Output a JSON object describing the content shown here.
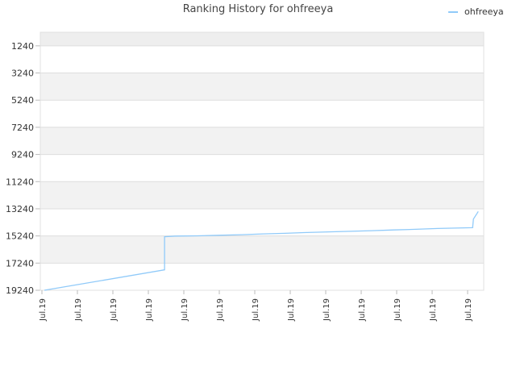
{
  "chart_data": {
    "type": "line",
    "title": "Ranking History for ohfreeya",
    "xlabel": "",
    "ylabel": "",
    "y_inverted": true,
    "ylim": [
      19240,
      240
    ],
    "y_ticks": [
      1240,
      3240,
      5240,
      7240,
      9240,
      11240,
      13240,
      15240,
      17240,
      19240
    ],
    "x_tick_labels": [
      "Jul.19",
      "Jul.19",
      "Jul.19",
      "Jul.19",
      "Jul.19",
      "Jul.19",
      "Jul.19",
      "Jul.19",
      "Jul.19",
      "Jul.19",
      "Jul.19",
      "Jul.19",
      "Jul.19"
    ],
    "legend": {
      "position": "top-right"
    },
    "grid": true,
    "series": [
      {
        "name": "ohfreeya",
        "color": "#90caf9",
        "points": [
          {
            "t": 0.0,
            "rank": 19240
          },
          {
            "t": 0.275,
            "rank": 17740
          },
          {
            "t": 0.275,
            "rank": 15300
          },
          {
            "t": 0.3,
            "rank": 15250
          },
          {
            "t": 0.35,
            "rank": 15230
          },
          {
            "t": 0.4,
            "rank": 15190
          },
          {
            "t": 0.45,
            "rank": 15150
          },
          {
            "t": 0.5,
            "rank": 15090
          },
          {
            "t": 0.55,
            "rank": 15050
          },
          {
            "t": 0.6,
            "rank": 14990
          },
          {
            "t": 0.65,
            "rank": 14940
          },
          {
            "t": 0.7,
            "rank": 14900
          },
          {
            "t": 0.75,
            "rank": 14850
          },
          {
            "t": 0.8,
            "rank": 14800
          },
          {
            "t": 0.85,
            "rank": 14750
          },
          {
            "t": 0.9,
            "rank": 14690
          },
          {
            "t": 0.98,
            "rank": 14630
          },
          {
            "t": 0.982,
            "rank": 14000
          },
          {
            "t": 0.993,
            "rank": 13440
          }
        ]
      }
    ]
  }
}
